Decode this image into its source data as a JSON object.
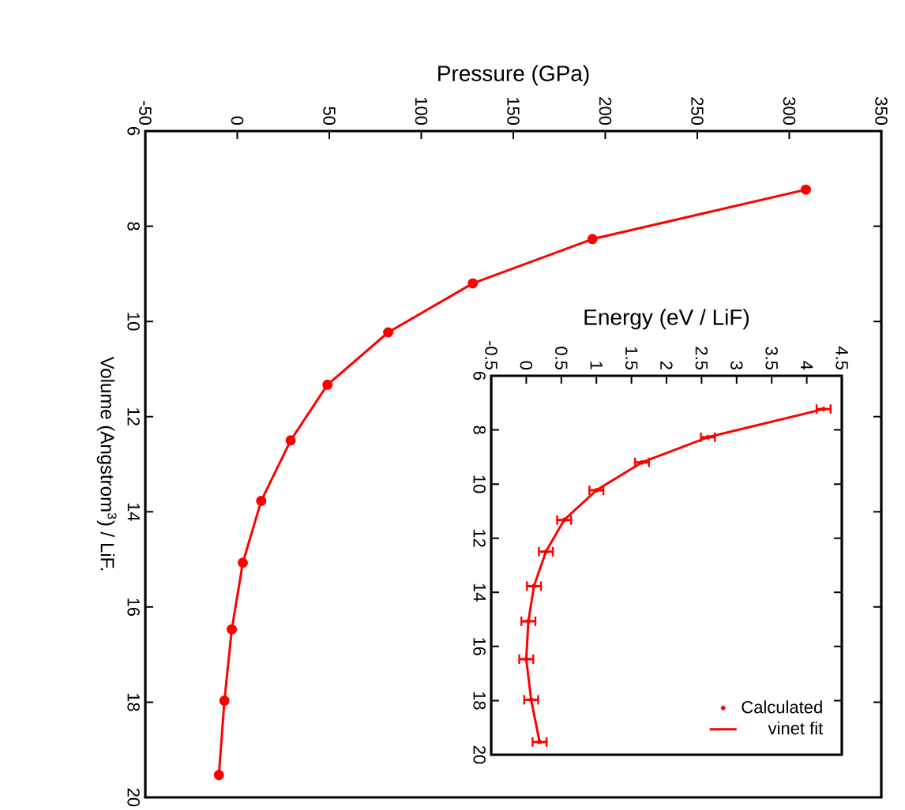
{
  "chart_data": [
    {
      "type": "line",
      "xlabel": "Pressure (GPa)",
      "ylabel": "Volume (Angstrom$^{3}$) / LiF.",
      "marker": "circle",
      "x": [
        309,
        193,
        128,
        82,
        49,
        29,
        13,
        3,
        -3,
        -7,
        -10
      ],
      "values": [
        7.23,
        8.27,
        9.2,
        10.23,
        11.33,
        12.5,
        13.77,
        15.07,
        16.47,
        17.97,
        19.53
      ],
      "color": "#ff0000",
      "xlim": [
        -50,
        350
      ],
      "ylim": [
        20,
        6
      ],
      "xticks": [
        -50,
        0,
        50,
        100,
        150,
        200,
        250,
        300,
        350
      ],
      "yticks": [
        6,
        8,
        10,
        12,
        14,
        16,
        18,
        20
      ]
    },
    {
      "type": "scatter",
      "xlabel": "Energy (eV / LiF)",
      "legend": "bottom right",
      "series": [
        {
          "name": "Calculated",
          "type": "scatter",
          "color": "#ff0000",
          "x": [
            4.24,
            2.59,
            1.65,
            1.0,
            0.54,
            0.28,
            0.11,
            0.03,
            0.0,
            0.07,
            0.19
          ],
          "values": [
            7.23,
            8.27,
            9.2,
            10.23,
            11.33,
            12.5,
            13.77,
            15.07,
            16.47,
            17.97,
            19.53
          ],
          "xerrors": [
            0.1,
            0.1,
            0.1,
            0.1,
            0.1,
            0.1,
            0.1,
            0.1,
            0.1,
            0.1,
            0.1
          ]
        },
        {
          "name": "vinet fit",
          "type": "line",
          "color": "#ff0000",
          "x": [
            4.24,
            2.59,
            1.65,
            1.0,
            0.54,
            0.28,
            0.11,
            0.03,
            0.0,
            0.07,
            0.19
          ],
          "values": [
            7.23,
            8.27,
            9.2,
            10.23,
            11.33,
            12.5,
            13.77,
            15.07,
            16.47,
            17.97,
            19.53
          ]
        }
      ],
      "xlim": [
        -0.5,
        4.5
      ],
      "ylim": [
        20,
        6
      ],
      "xticks": [
        -0.5,
        0,
        0.5,
        1,
        1.5,
        2,
        2.5,
        3,
        3.5,
        4,
        4.5
      ],
      "yticks": [
        6,
        8,
        10,
        12,
        14,
        16,
        18,
        20
      ]
    }
  ]
}
